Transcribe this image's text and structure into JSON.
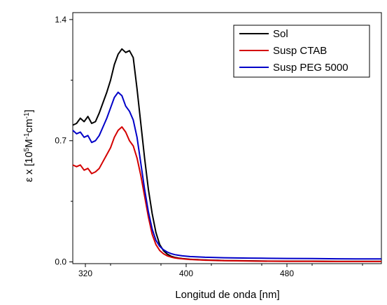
{
  "chart_data": {
    "type": "line",
    "xlabel": "Longitud de onda [nm]",
    "ylabel_parts": [
      "ε x [10",
      "5",
      "M",
      "-1",
      "cm",
      "-1",
      "]"
    ],
    "xlim": [
      310,
      555
    ],
    "ylim": [
      -0.01,
      1.44
    ],
    "xticks": [
      320,
      400,
      480
    ],
    "xtick_labels": [
      "320",
      "400",
      "480"
    ],
    "yticks": [
      0.0,
      0.7,
      1.4
    ],
    "ytick_labels": [
      "0.0",
      "0.7",
      "1.4"
    ],
    "legend_position": "top-right",
    "series": [
      {
        "name": "Sol",
        "color": "#000000",
        "x": [
          310,
          313,
          316,
          319,
          322,
          325,
          328,
          331,
          334,
          337,
          340,
          343,
          346,
          349,
          352,
          355,
          358,
          361,
          364,
          367,
          370,
          373,
          376,
          379,
          382,
          385,
          388,
          391,
          394,
          397,
          400,
          403,
          406,
          409,
          412,
          415,
          420,
          425,
          430,
          440,
          450,
          460,
          480,
          500,
          520,
          540,
          555
        ],
        "y": [
          0.79,
          0.8,
          0.83,
          0.81,
          0.84,
          0.8,
          0.81,
          0.86,
          0.92,
          0.98,
          1.05,
          1.14,
          1.2,
          1.23,
          1.21,
          1.22,
          1.18,
          1.0,
          0.8,
          0.6,
          0.42,
          0.28,
          0.17,
          0.1,
          0.065,
          0.045,
          0.033,
          0.026,
          0.022,
          0.019,
          0.017,
          0.015,
          0.014,
          0.013,
          0.012,
          0.011,
          0.01,
          0.009,
          0.008,
          0.007,
          0.006,
          0.005,
          0.004,
          0.004,
          0.003,
          0.003,
          0.003
        ]
      },
      {
        "name": "Susp CTAB",
        "color": "#d40000",
        "x": [
          310,
          313,
          316,
          319,
          322,
          325,
          328,
          331,
          334,
          337,
          340,
          343,
          346,
          349,
          352,
          355,
          358,
          361,
          364,
          367,
          370,
          373,
          376,
          379,
          382,
          385,
          388,
          391,
          394,
          397,
          400,
          403,
          406,
          409,
          412,
          415,
          420,
          425,
          430,
          440,
          450,
          460,
          480,
          500,
          520,
          540,
          555
        ],
        "y": [
          0.56,
          0.55,
          0.56,
          0.53,
          0.54,
          0.51,
          0.52,
          0.54,
          0.58,
          0.62,
          0.66,
          0.72,
          0.76,
          0.78,
          0.75,
          0.7,
          0.67,
          0.6,
          0.5,
          0.38,
          0.26,
          0.16,
          0.1,
          0.066,
          0.047,
          0.035,
          0.028,
          0.023,
          0.02,
          0.018,
          0.016,
          0.014,
          0.013,
          0.012,
          0.011,
          0.01,
          0.009,
          0.008,
          0.007,
          0.006,
          0.005,
          0.004,
          0.003,
          0.003,
          0.002,
          0.002,
          0.002
        ]
      },
      {
        "name": "Susp PEG 5000",
        "color": "#0000c8",
        "x": [
          310,
          313,
          316,
          319,
          322,
          325,
          328,
          331,
          334,
          337,
          340,
          343,
          346,
          349,
          352,
          355,
          358,
          361,
          364,
          367,
          370,
          373,
          376,
          379,
          382,
          385,
          388,
          391,
          394,
          397,
          400,
          403,
          406,
          409,
          412,
          415,
          420,
          425,
          430,
          440,
          450,
          460,
          480,
          500,
          520,
          540,
          555
        ],
        "y": [
          0.76,
          0.74,
          0.75,
          0.72,
          0.73,
          0.69,
          0.7,
          0.73,
          0.78,
          0.83,
          0.89,
          0.95,
          0.98,
          0.96,
          0.9,
          0.87,
          0.82,
          0.72,
          0.57,
          0.42,
          0.29,
          0.19,
          0.125,
          0.09,
          0.07,
          0.057,
          0.048,
          0.042,
          0.038,
          0.035,
          0.033,
          0.031,
          0.03,
          0.029,
          0.028,
          0.027,
          0.026,
          0.025,
          0.024,
          0.023,
          0.022,
          0.021,
          0.02,
          0.019,
          0.018,
          0.017,
          0.017
        ]
      }
    ]
  }
}
